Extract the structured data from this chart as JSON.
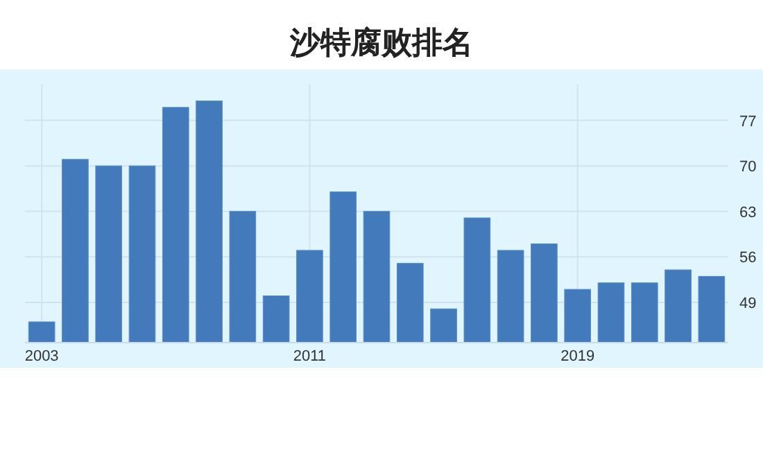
{
  "chart_data": {
    "type": "bar",
    "title": "沙特腐败排名",
    "categories": [
      "2003",
      null,
      null,
      null,
      null,
      null,
      null,
      null,
      "2011",
      null,
      null,
      null,
      null,
      null,
      null,
      null,
      "2019",
      null,
      null,
      null,
      null
    ],
    "values": [
      46,
      71,
      70,
      70,
      79,
      80,
      63,
      50,
      57,
      66,
      63,
      55,
      48,
      62,
      57,
      58,
      51,
      52,
      52,
      54,
      53
    ],
    "color": "#427abb",
    "ylim": [
      42.8,
      82.5
    ],
    "yticks": [
      49,
      56,
      63,
      70,
      77
    ],
    "grid": true
  }
}
